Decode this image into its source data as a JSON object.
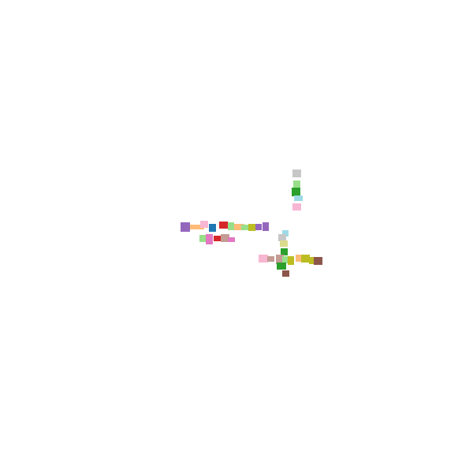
{
  "palette": {
    "purple": "#9467bd",
    "light_pink": "#f7b6d2",
    "peach": "#ffbb78",
    "blue": "#1f77b4",
    "red": "#d62728",
    "light_green": "#98df8a",
    "olive": "#bcbd22",
    "tan": "#c49c94",
    "pink": "#e377c2",
    "green": "#2ca02c",
    "light_blue": "#9edae5",
    "sky": "#aec7e8",
    "khaki": "#dbdb8d",
    "orange": "#ff7f0e",
    "brown": "#8c564b",
    "gray": "#c7c7c7"
  },
  "clusters": [
    {
      "name": "vertical-strip",
      "glyphs": [
        {
          "color": "gray"
        },
        {
          "color": "light_green"
        },
        {
          "color": "green"
        },
        {
          "color": "light_blue"
        },
        {
          "color": "light_pink"
        }
      ]
    },
    {
      "name": "horizontal-strip",
      "glyphs": [
        {
          "color": "purple"
        },
        {
          "color": "peach"
        },
        {
          "color": "light_pink"
        },
        {
          "color": "blue"
        },
        {
          "color": "red"
        },
        {
          "color": "light_green"
        },
        {
          "color": "peach"
        },
        {
          "color": "light_green"
        },
        {
          "color": "olive"
        },
        {
          "color": "purple"
        },
        {
          "color": "purple"
        },
        {
          "color": "light_green"
        },
        {
          "color": "pink"
        },
        {
          "color": "red"
        },
        {
          "color": "tan"
        },
        {
          "color": "pink"
        }
      ]
    },
    {
      "name": "cross-cluster",
      "glyphs": [
        {
          "color": "light_blue"
        },
        {
          "color": "gray"
        },
        {
          "color": "khaki"
        },
        {
          "color": "green"
        },
        {
          "color": "light_pink"
        },
        {
          "color": "tan"
        },
        {
          "color": "tan"
        },
        {
          "color": "light_green"
        },
        {
          "color": "olive"
        },
        {
          "color": "peach"
        },
        {
          "color": "olive"
        },
        {
          "color": "olive"
        },
        {
          "color": "brown"
        },
        {
          "color": "green"
        },
        {
          "color": "brown"
        }
      ]
    }
  ]
}
